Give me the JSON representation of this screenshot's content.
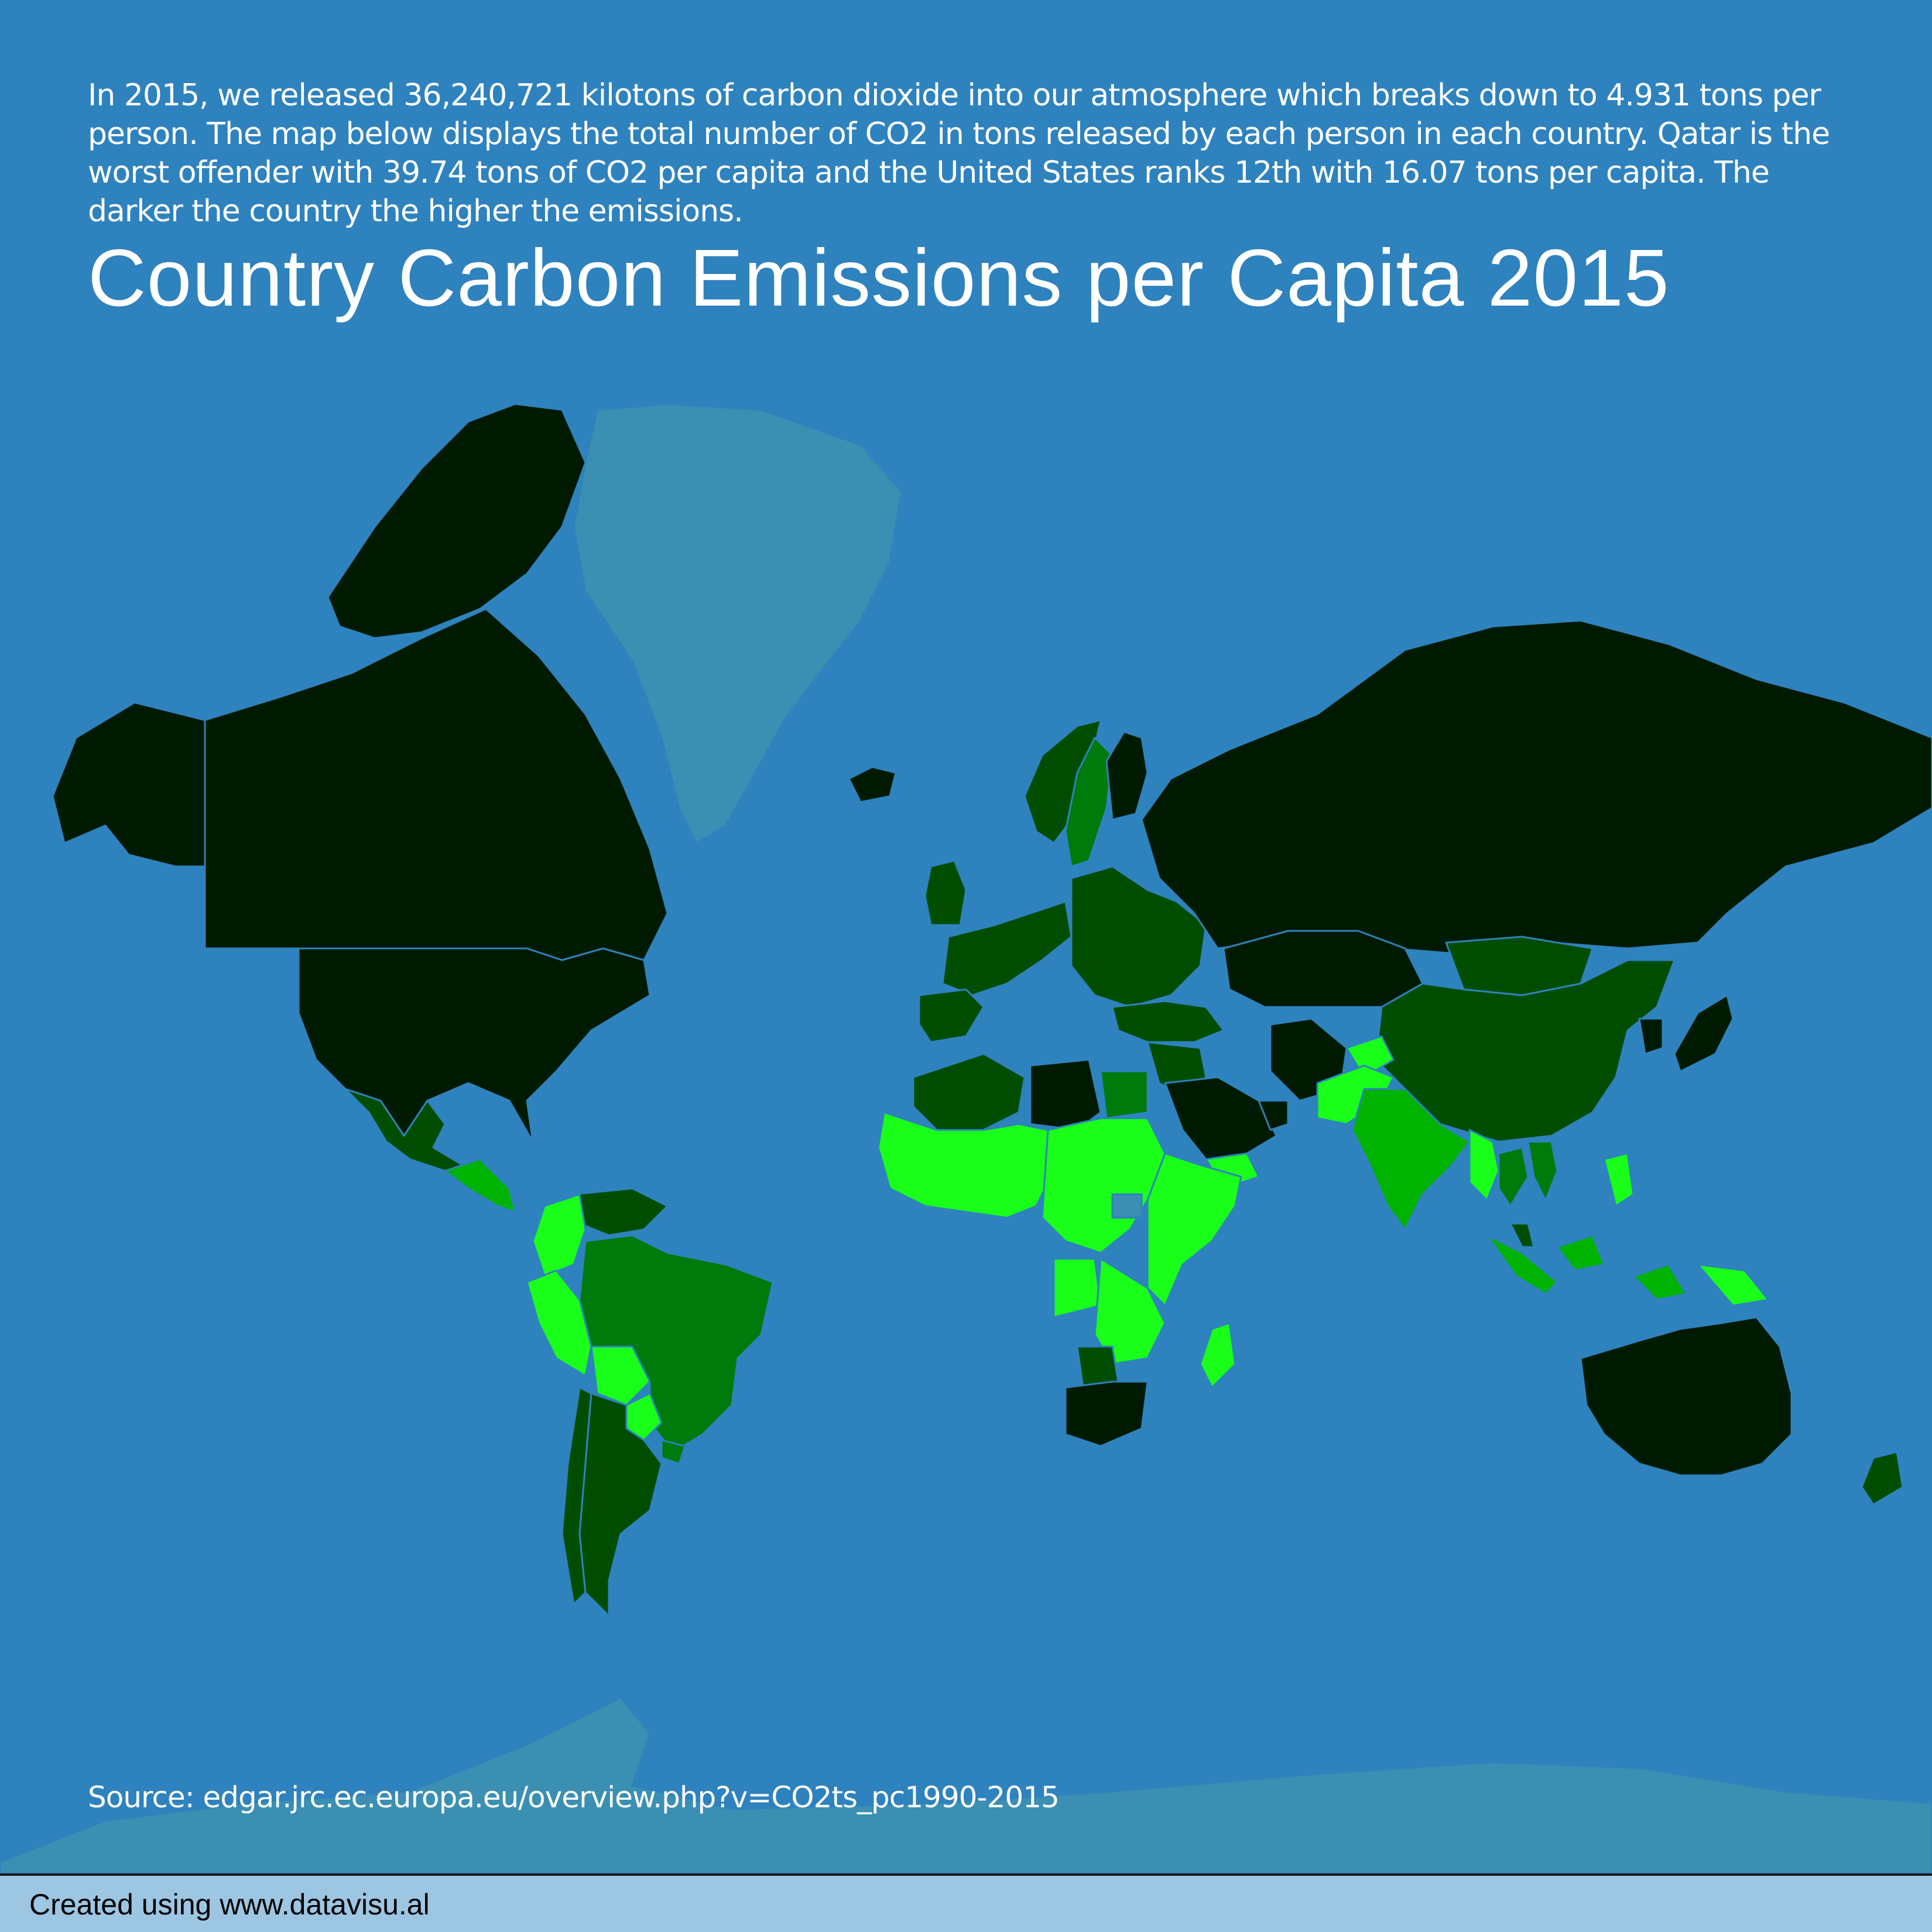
{
  "description": "In 2015, we released 36,240,721 kilotons of carbon dioxide into our atmosphere which breaks down to 4.931 tons per person. The map below displays the total number of CO2 in tons released by each person in each country. Qatar is the worst offender with 39.74 tons of CO2 per capita and the United States ranks 12th with 16.07 tons per capita. The darker the country the higher the emissions.",
  "title": "Country Carbon Emissions per Capita 2015",
  "source": "Source: edgar.jrc.ec.europa.eu/overview.php?v=CO2ts_pc1990-2015",
  "footer": "Created using www.datavisu.al",
  "colors": {
    "background": "#2e82be",
    "no_data": "#3b8fb2",
    "emissions_very_high": "#001a00",
    "emissions_high": "#004d00",
    "emissions_medium": "#007a0a",
    "emissions_low": "#00b300",
    "emissions_very_low": "#1aff1a",
    "border": "#2e82be",
    "footer_bar": "#9cc6e2"
  },
  "map": {
    "projection": "mercator",
    "legend": "none",
    "highlighted_values": [
      {
        "country": "Qatar",
        "tons_per_capita": 39.74
      },
      {
        "country": "United States",
        "tons_per_capita": 16.07
      }
    ],
    "regions": [
      {
        "name": "Greenland",
        "level": "no_data"
      },
      {
        "name": "Antarctica",
        "level": "no_data"
      },
      {
        "name": "Canada",
        "level": "very_high"
      },
      {
        "name": "Alaska",
        "level": "very_high"
      },
      {
        "name": "United States",
        "level": "very_high"
      },
      {
        "name": "Mexico",
        "level": "high"
      },
      {
        "name": "Central America",
        "level": "low"
      },
      {
        "name": "Venezuela",
        "level": "high"
      },
      {
        "name": "Colombia",
        "level": "very_low"
      },
      {
        "name": "Peru",
        "level": "very_low"
      },
      {
        "name": "Bolivia",
        "level": "very_low"
      },
      {
        "name": "Brazil",
        "level": "medium"
      },
      {
        "name": "Paraguay",
        "level": "very_low"
      },
      {
        "name": "Uruguay",
        "level": "medium"
      },
      {
        "name": "Chile",
        "level": "high"
      },
      {
        "name": "Argentina",
        "level": "high"
      },
      {
        "name": "Iceland",
        "level": "very_high"
      },
      {
        "name": "Norway",
        "level": "high"
      },
      {
        "name": "Sweden",
        "level": "medium"
      },
      {
        "name": "Finland",
        "level": "very_high"
      },
      {
        "name": "United Kingdom",
        "level": "high"
      },
      {
        "name": "Western Europe",
        "level": "high"
      },
      {
        "name": "Spain",
        "level": "high"
      },
      {
        "name": "Eastern Europe",
        "level": "high"
      },
      {
        "name": "Turkey",
        "level": "high"
      },
      {
        "name": "Russia",
        "level": "very_high"
      },
      {
        "name": "Kazakhstan",
        "level": "very_high"
      },
      {
        "name": "Mongolia",
        "level": "high"
      },
      {
        "name": "China",
        "level": "high"
      },
      {
        "name": "Korea",
        "level": "very_high"
      },
      {
        "name": "Japan",
        "level": "very_high"
      },
      {
        "name": "Middle East",
        "level": "high"
      },
      {
        "name": "Iran",
        "level": "very_high"
      },
      {
        "name": "Saudi Arabia",
        "level": "very_high"
      },
      {
        "name": "Gulf States",
        "level": "very_high"
      },
      {
        "name": "Yemen",
        "level": "very_low"
      },
      {
        "name": "Afghanistan",
        "level": "very_low"
      },
      {
        "name": "Pakistan",
        "level": "very_low"
      },
      {
        "name": "India",
        "level": "low"
      },
      {
        "name": "Myanmar",
        "level": "very_low"
      },
      {
        "name": "Thailand",
        "level": "medium"
      },
      {
        "name": "Vietnam",
        "level": "medium"
      },
      {
        "name": "Malaysia",
        "level": "high"
      },
      {
        "name": "Indonesia",
        "level": "low"
      },
      {
        "name": "Philippines",
        "level": "very_low"
      },
      {
        "name": "Papua New Guinea",
        "level": "very_low"
      },
      {
        "name": "Australia",
        "level": "very_high"
      },
      {
        "name": "New Zealand",
        "level": "high"
      },
      {
        "name": "Algeria",
        "level": "high"
      },
      {
        "name": "Libya",
        "level": "very_high"
      },
      {
        "name": "Egypt",
        "level": "medium"
      },
      {
        "name": "West Africa",
        "level": "very_low"
      },
      {
        "name": "Central Africa",
        "level": "very_low"
      },
      {
        "name": "East Africa",
        "level": "very_low"
      },
      {
        "name": "South Sudan",
        "level": "no_data"
      },
      {
        "name": "Angola",
        "level": "very_low"
      },
      {
        "name": "Southern Africa",
        "level": "very_low"
      },
      {
        "name": "Botswana",
        "level": "high"
      },
      {
        "name": "South Africa",
        "level": "very_high"
      },
      {
        "name": "Madagascar",
        "level": "very_low"
      }
    ]
  }
}
